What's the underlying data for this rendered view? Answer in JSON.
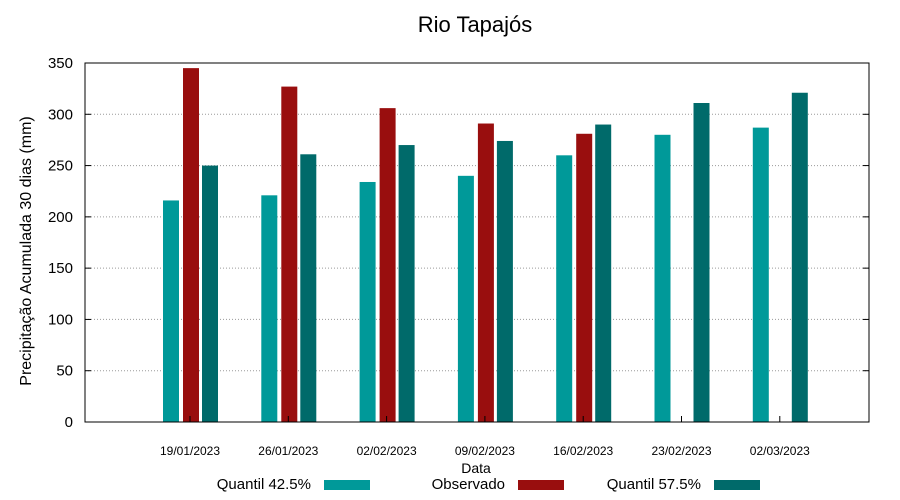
{
  "chart_data": {
    "type": "bar",
    "title": "Rio Tapajós",
    "xlabel": "Data",
    "ylabel": "Precipitação Acumulada 30 dias (mm)",
    "ylim": [
      0,
      350
    ],
    "yticks": [
      0,
      50,
      100,
      150,
      200,
      250,
      300,
      350
    ],
    "grid": true,
    "legend_position": "bottom",
    "categories": [
      "19/01/2023",
      "26/01/2023",
      "02/02/2023",
      "09/02/2023",
      "16/02/2023",
      "23/02/2023",
      "02/03/2023"
    ],
    "series": [
      {
        "name": "Quantil 42.5%",
        "color": "#009999",
        "values": [
          216,
          221,
          234,
          240,
          260,
          280,
          287
        ]
      },
      {
        "name": "Observado",
        "color": "#990e0e",
        "values": [
          345,
          327,
          306,
          291,
          281,
          null,
          null
        ]
      },
      {
        "name": "Quantil 57.5%",
        "color": "#006a6a",
        "values": [
          250,
          261,
          270,
          274,
          290,
          311,
          321
        ]
      }
    ]
  }
}
